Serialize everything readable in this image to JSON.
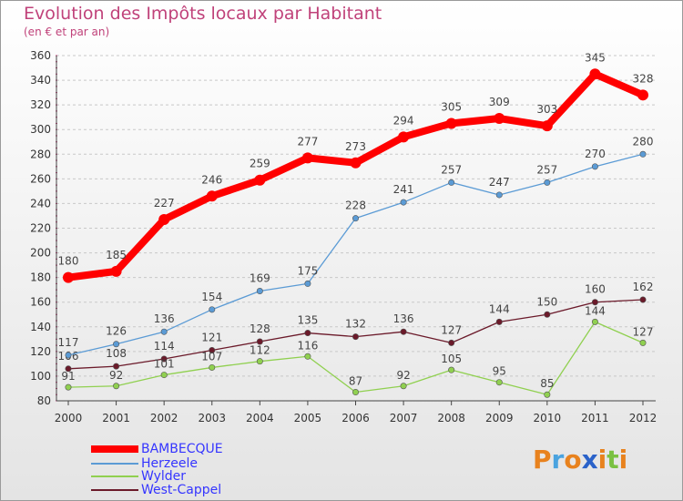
{
  "chart_data": {
    "type": "line",
    "title": "Evolution des Impôts locaux par Habitant",
    "subtitle": "(en € et par an)",
    "xlabel": "",
    "ylabel": "",
    "ylim": [
      80,
      360
    ],
    "yticks": [
      80,
      100,
      120,
      140,
      160,
      180,
      200,
      220,
      240,
      260,
      280,
      300,
      320,
      340,
      360
    ],
    "categories": [
      "2000",
      "2001",
      "2002",
      "2003",
      "2004",
      "2005",
      "2006",
      "2007",
      "2008",
      "2009",
      "2010",
      "2011",
      "2012"
    ],
    "series": [
      {
        "name": "BAMBECQUE",
        "color": "#ff0000",
        "legend_color": "#3535ff",
        "values": [
          180,
          185,
          227,
          246,
          259,
          277,
          273,
          294,
          305,
          309,
          303,
          345,
          328
        ]
      },
      {
        "name": "Herzeele",
        "color": "#5b9bd5",
        "legend_color": "#3535ff",
        "values": [
          117,
          126,
          136,
          154,
          169,
          175,
          228,
          241,
          257,
          247,
          257,
          270,
          280
        ]
      },
      {
        "name": "Wylder",
        "color": "#90d050",
        "legend_color": "#3535ff",
        "values": [
          91,
          92,
          101,
          107,
          112,
          116,
          87,
          92,
          105,
          95,
          85,
          144,
          127
        ]
      },
      {
        "name": "West-Cappel",
        "color": "#6b1a2a",
        "legend_color": "#3535ff",
        "values": [
          106,
          108,
          114,
          121,
          128,
          135,
          132,
          136,
          127,
          144,
          150,
          160,
          162
        ]
      }
    ],
    "grid": true,
    "legend_position": "bottom-left"
  },
  "logo": {
    "letters": [
      "P",
      "r",
      "o",
      "x",
      "i",
      "t",
      "i"
    ],
    "colors": [
      "#e8821e",
      "#4aa3df",
      "#e8821e",
      "#2a62c9",
      "#e8821e",
      "#7ac142",
      "#e8821e"
    ]
  }
}
